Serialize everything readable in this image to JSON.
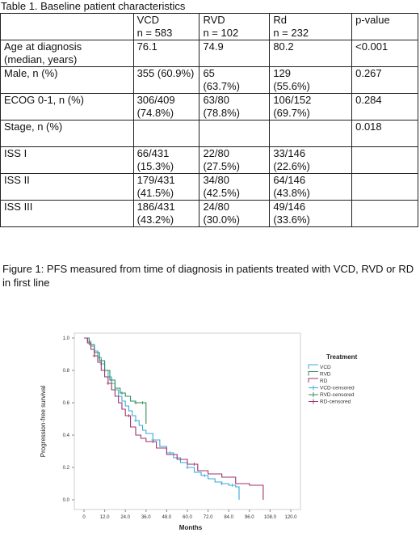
{
  "table": {
    "caption": "Table 1. Baseline patient characteristics",
    "header": [
      [
        "",
        ""
      ],
      [
        "VCD",
        "n = 583"
      ],
      [
        "RVD",
        "n = 102"
      ],
      [
        "Rd",
        "n = 232"
      ],
      [
        "p-value",
        ""
      ]
    ],
    "rows": [
      [
        [
          "Age at diagnosis",
          "(median, years)"
        ],
        [
          "76.1",
          ""
        ],
        [
          "74.9",
          ""
        ],
        [
          "80.2",
          ""
        ],
        [
          "<0.001",
          ""
        ]
      ],
      [
        [
          "Male, n (%)",
          ""
        ],
        [
          "355 (60.9%)",
          ""
        ],
        [
          "65",
          "(63.7%)"
        ],
        [
          "129",
          "(55.6%)"
        ],
        [
          "0.267",
          ""
        ]
      ],
      [
        [
          "ECOG 0-1, n (%)",
          ""
        ],
        [
          "306/409",
          "(74.8%)"
        ],
        [
          "63/80",
          "(78.8%)"
        ],
        [
          "106/152",
          "(69.7%)"
        ],
        [
          "0.284",
          ""
        ]
      ],
      [
        [
          "Stage, n (%)",
          ""
        ],
        [
          "",
          ""
        ],
        [
          "",
          ""
        ],
        [
          "",
          ""
        ],
        [
          "0.018",
          ""
        ]
      ],
      [
        [
          "ISS I",
          ""
        ],
        [
          "66/431",
          "(15.3%)"
        ],
        [
          "22/80",
          "(27.5%)"
        ],
        [
          "33/146",
          "(22.6%)"
        ],
        [
          "",
          ""
        ]
      ],
      [
        [
          "ISS II",
          ""
        ],
        [
          "179/431",
          "(41.5%)"
        ],
        [
          "34/80",
          "(42.5%)"
        ],
        [
          "64/146",
          "(43.8%)"
        ],
        [
          "",
          ""
        ]
      ],
      [
        [
          "ISS III",
          ""
        ],
        [
          "186/431",
          "(43.2%)"
        ],
        [
          "24/80",
          "(30.0%)"
        ],
        [
          "49/146",
          "(33.6%)"
        ],
        [
          "",
          ""
        ]
      ]
    ]
  },
  "figure": {
    "caption": "Figure 1: PFS measured from time of diagnosis in patients treated with VCD, RVD or RD in first line"
  },
  "colors": {
    "VCD": "#3aa8d8",
    "RVD": "#2e8b57",
    "RD": "#a0306a"
  },
  "chart_data": {
    "type": "line",
    "xlabel": "Months",
    "ylabel": "Progression-free survival",
    "xlim": [
      0,
      120
    ],
    "ylim": [
      0,
      1.0
    ],
    "xticks": [
      "0",
      "12.0",
      "24.0",
      "36.0",
      "48.0",
      "60.0",
      "72.0",
      "84.0",
      "96.0",
      "108.0",
      "120.0"
    ],
    "yticks": [
      "0.0",
      "0.2",
      "0.4",
      "0.6",
      "0.8",
      "1.0"
    ],
    "legend_title": "Treatment",
    "legend_position": "right",
    "legend": [
      "VCD",
      "RVD",
      "RD",
      "VCD-censored",
      "RVD-censored",
      "RD-censored"
    ],
    "series": [
      {
        "name": "VCD",
        "key": "VCD",
        "x": [
          0,
          2,
          4,
          6,
          8,
          10,
          12,
          14,
          16,
          18,
          20,
          22,
          24,
          26,
          28,
          30,
          32,
          34,
          36,
          40,
          44,
          48,
          52,
          56,
          60,
          64,
          68,
          72,
          76,
          80,
          84,
          88,
          90
        ],
        "y": [
          1.0,
          0.98,
          0.95,
          0.92,
          0.88,
          0.84,
          0.8,
          0.76,
          0.72,
          0.68,
          0.64,
          0.61,
          0.58,
          0.55,
          0.52,
          0.49,
          0.46,
          0.43,
          0.41,
          0.37,
          0.33,
          0.29,
          0.26,
          0.23,
          0.2,
          0.17,
          0.15,
          0.13,
          0.11,
          0.1,
          0.09,
          0.08,
          0.0
        ],
        "censored_x": [
          10,
          20,
          30,
          40,
          50,
          60,
          70,
          80,
          86
        ]
      },
      {
        "name": "RVD",
        "key": "RVD",
        "x": [
          0,
          3,
          6,
          9,
          12,
          15,
          18,
          21,
          24,
          27,
          30,
          36
        ],
        "y": [
          1.0,
          0.96,
          0.91,
          0.86,
          0.8,
          0.74,
          0.69,
          0.66,
          0.64,
          0.61,
          0.6,
          0.47
        ],
        "censored_x": [
          4,
          10,
          16,
          22,
          30,
          34
        ]
      },
      {
        "name": "RD",
        "key": "RD",
        "x": [
          0,
          2,
          4,
          6,
          8,
          10,
          12,
          14,
          16,
          18,
          20,
          22,
          24,
          27,
          30,
          33,
          36,
          42,
          48,
          54,
          60,
          66,
          72,
          80,
          88,
          96,
          104
        ],
        "y": [
          1.0,
          0.97,
          0.93,
          0.89,
          0.85,
          0.8,
          0.76,
          0.72,
          0.68,
          0.64,
          0.6,
          0.56,
          0.52,
          0.45,
          0.4,
          0.38,
          0.36,
          0.32,
          0.28,
          0.25,
          0.22,
          0.18,
          0.16,
          0.14,
          0.1,
          0.09,
          0.0
        ],
        "censored_x": [
          6,
          14,
          26,
          40,
          64
        ]
      }
    ]
  }
}
